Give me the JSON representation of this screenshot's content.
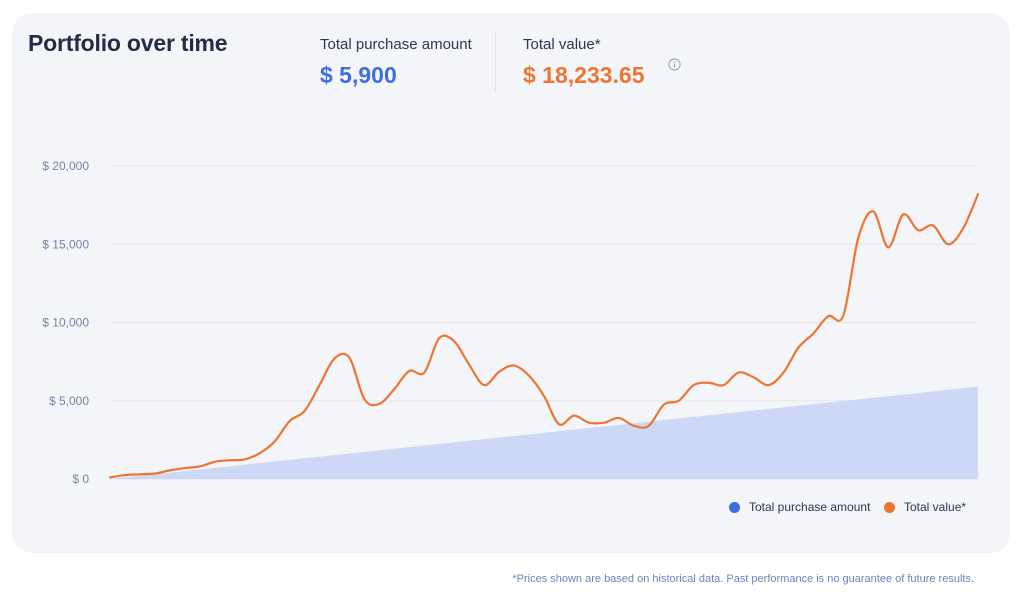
{
  "header": {
    "title": "Portfolio over time",
    "purchase_label": "Total purchase amount",
    "purchase_value": "$ 5,900",
    "value_label": "Total value*",
    "value_value": "$ 18,233.65",
    "info_icon": "info-icon"
  },
  "legend": {
    "purchase": "Total purchase amount",
    "value": "Total value*"
  },
  "footnote": "*Prices shown are based on historical data. Past performance is no guarantee of future results.",
  "colors": {
    "purchase": "#3d6ee0",
    "purchase_fill": "#ccd8f6",
    "value": "#ee7433",
    "grid": "#e3e6ee",
    "tick": "#7b82a0"
  },
  "chart_data": {
    "type": "line",
    "title": "Portfolio over time",
    "ylim": [
      0,
      20000
    ],
    "yticks": [
      0,
      5000,
      10000,
      15000,
      20000
    ],
    "ytick_labels": [
      "$ 0",
      "$ 5,000",
      "$ 10,000",
      "$ 15,000",
      "$ 20,000"
    ],
    "grid": true,
    "legend_position": "bottom-right",
    "series": [
      {
        "name": "Total purchase amount",
        "kind": "area",
        "values": [
          0,
          5900
        ]
      },
      {
        "name": "Total value*",
        "kind": "line",
        "values": [
          100,
          250,
          300,
          350,
          550,
          700,
          800,
          1100,
          1200,
          1250,
          1650,
          2400,
          3700,
          4350,
          6000,
          7700,
          7750,
          5100,
          4800,
          5750,
          6900,
          6800,
          9000,
          8800,
          7300,
          6000,
          6850,
          7250,
          6600,
          5300,
          3500,
          4050,
          3600,
          3600,
          3900,
          3400,
          3400,
          4750,
          5000,
          6000,
          6150,
          6000,
          6800,
          6500,
          6000,
          6800,
          8400,
          9300,
          10400,
          10450,
          15400,
          17100,
          14800,
          16900,
          15900,
          16200,
          15000,
          16000,
          18200
        ]
      }
    ]
  }
}
